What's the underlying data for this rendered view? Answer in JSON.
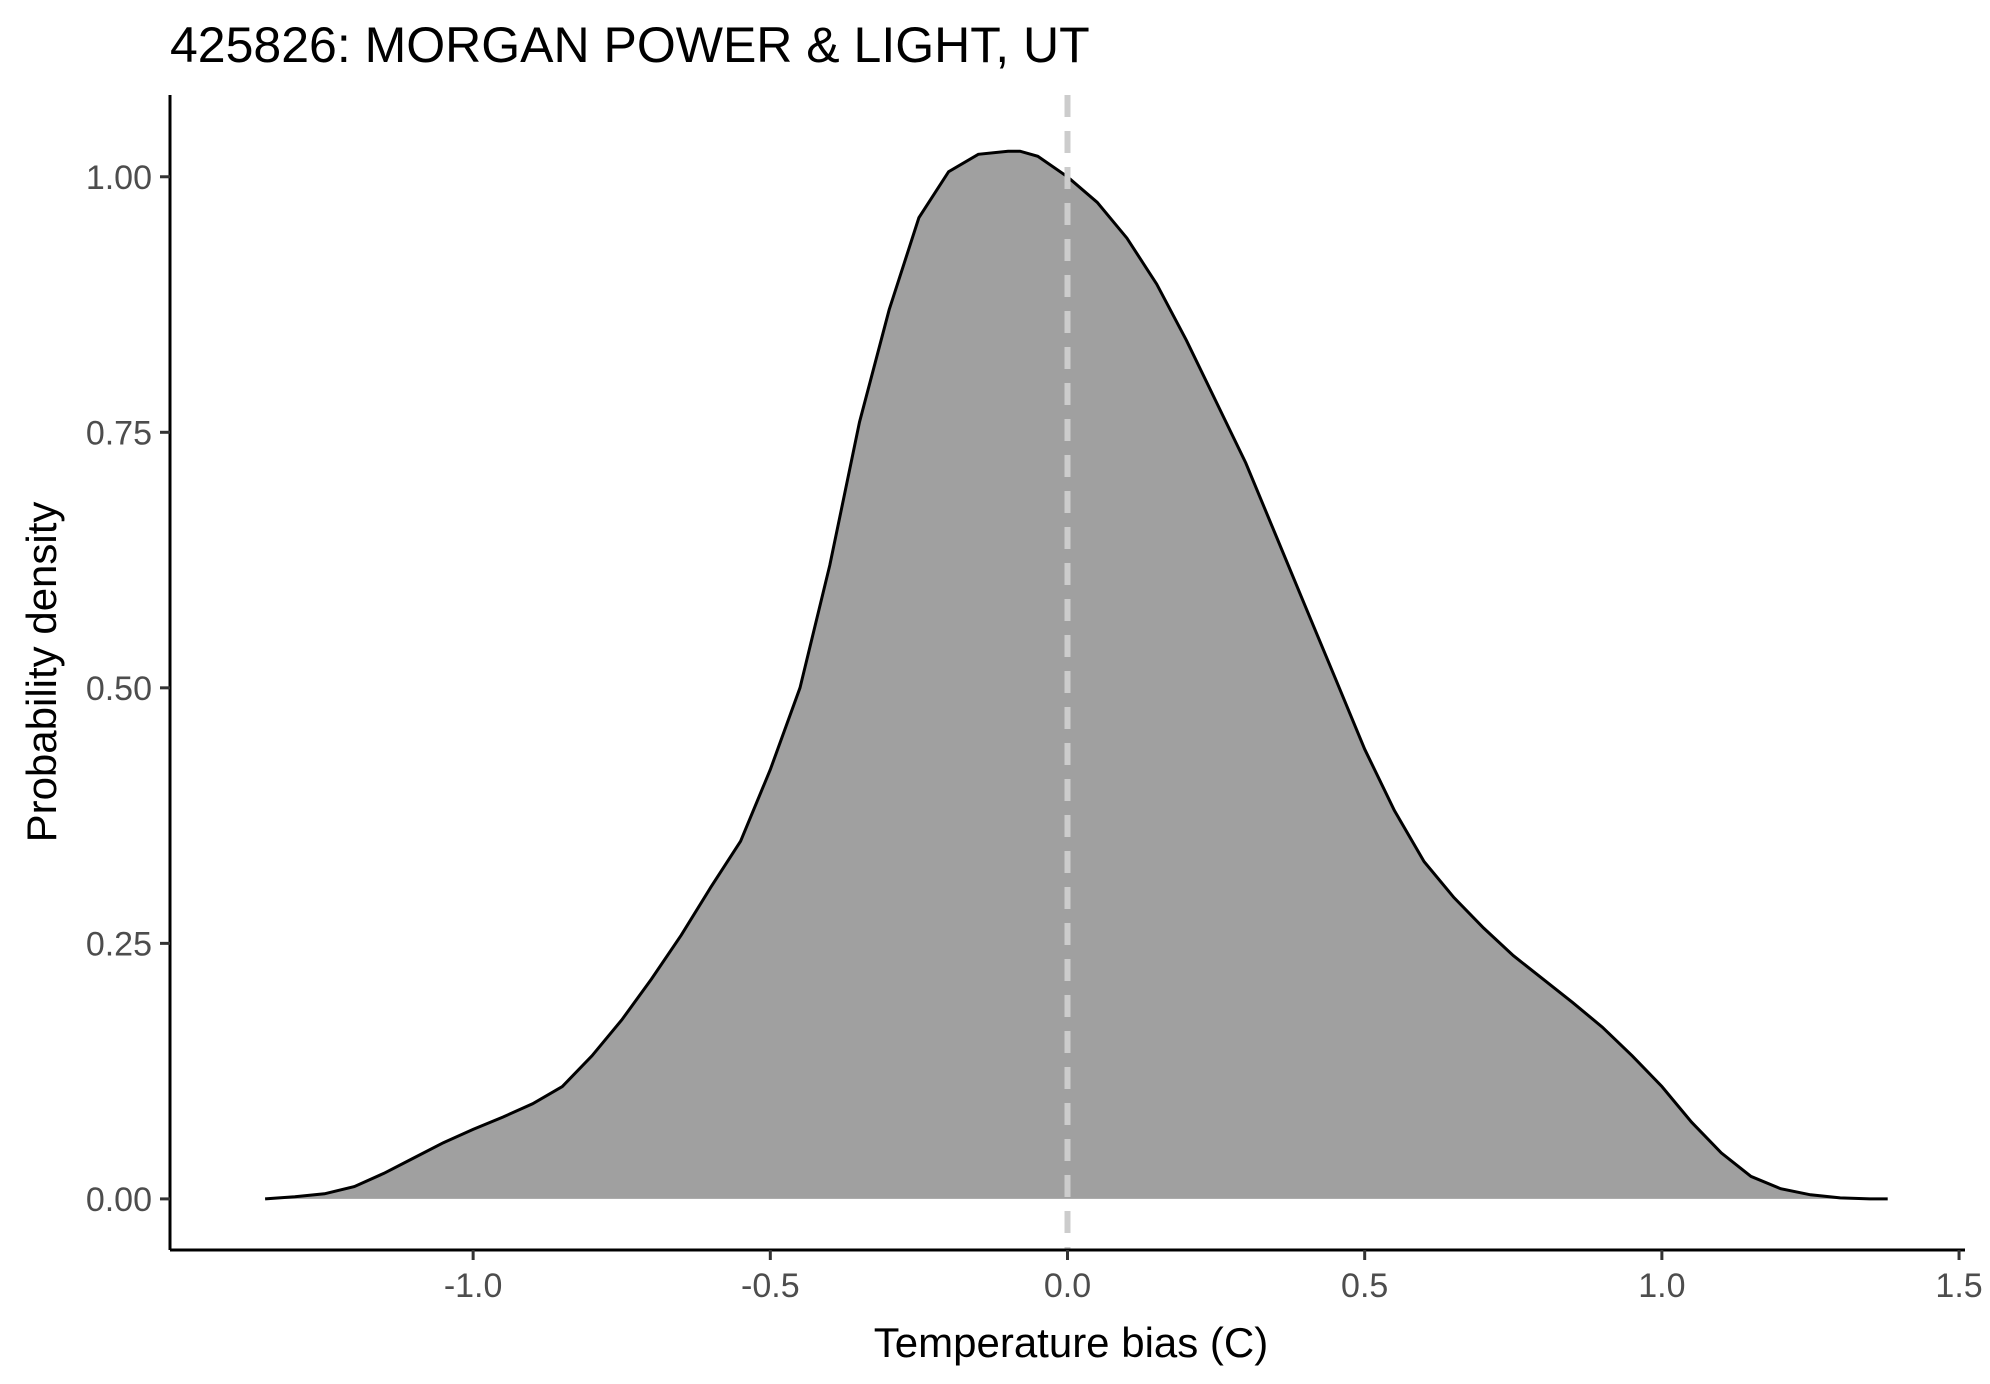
{
  "chart_data": {
    "type": "area",
    "title": "425826: MORGAN POWER & LIGHT, UT",
    "xlabel": "Temperature bias (C)",
    "ylabel": "Probability density",
    "xlim": [
      -1.51,
      1.51
    ],
    "ylim": [
      -0.05,
      1.08
    ],
    "x_ticks": [
      -1.0,
      -0.5,
      0.0,
      0.5,
      1.0,
      1.5
    ],
    "x_tick_labels": [
      "-1.0",
      "-0.5",
      "0.0",
      "0.5",
      "1.0",
      "1.5"
    ],
    "y_ticks": [
      0.0,
      0.25,
      0.5,
      0.75,
      1.0
    ],
    "y_tick_labels": [
      "0.00",
      "0.25",
      "0.50",
      "0.75",
      "1.00"
    ],
    "grid": false,
    "reference_line": {
      "x": 0.0,
      "style": "dashed",
      "color": "#cccccc"
    },
    "fill_color": "#a0a0a0",
    "line_color": "#000000",
    "series": [
      {
        "x": [
          -1.35,
          -1.3,
          -1.25,
          -1.2,
          -1.15,
          -1.1,
          -1.05,
          -1.0,
          -0.95,
          -0.9,
          -0.85,
          -0.8,
          -0.75,
          -0.7,
          -0.65,
          -0.6,
          -0.55,
          -0.5,
          -0.45,
          -0.4,
          -0.35,
          -0.3,
          -0.25,
          -0.2,
          -0.15,
          -0.1,
          -0.08,
          -0.05,
          0.0,
          0.05,
          0.1,
          0.15,
          0.2,
          0.25,
          0.3,
          0.35,
          0.4,
          0.45,
          0.5,
          0.55,
          0.6,
          0.65,
          0.7,
          0.75,
          0.8,
          0.85,
          0.9,
          0.95,
          1.0,
          1.05,
          1.1,
          1.15,
          1.2,
          1.25,
          1.3,
          1.35,
          1.38
        ],
        "y": [
          0.0,
          0.002,
          0.005,
          0.012,
          0.025,
          0.04,
          0.055,
          0.068,
          0.08,
          0.093,
          0.11,
          0.14,
          0.175,
          0.215,
          0.258,
          0.305,
          0.35,
          0.42,
          0.5,
          0.62,
          0.76,
          0.87,
          0.96,
          1.005,
          1.022,
          1.025,
          1.025,
          1.02,
          1.0,
          0.975,
          0.94,
          0.895,
          0.84,
          0.78,
          0.72,
          0.65,
          0.58,
          0.51,
          0.44,
          0.38,
          0.33,
          0.295,
          0.265,
          0.238,
          0.215,
          0.192,
          0.168,
          0.14,
          0.11,
          0.075,
          0.045,
          0.022,
          0.01,
          0.004,
          0.001,
          0.0,
          0.0
        ]
      }
    ]
  }
}
